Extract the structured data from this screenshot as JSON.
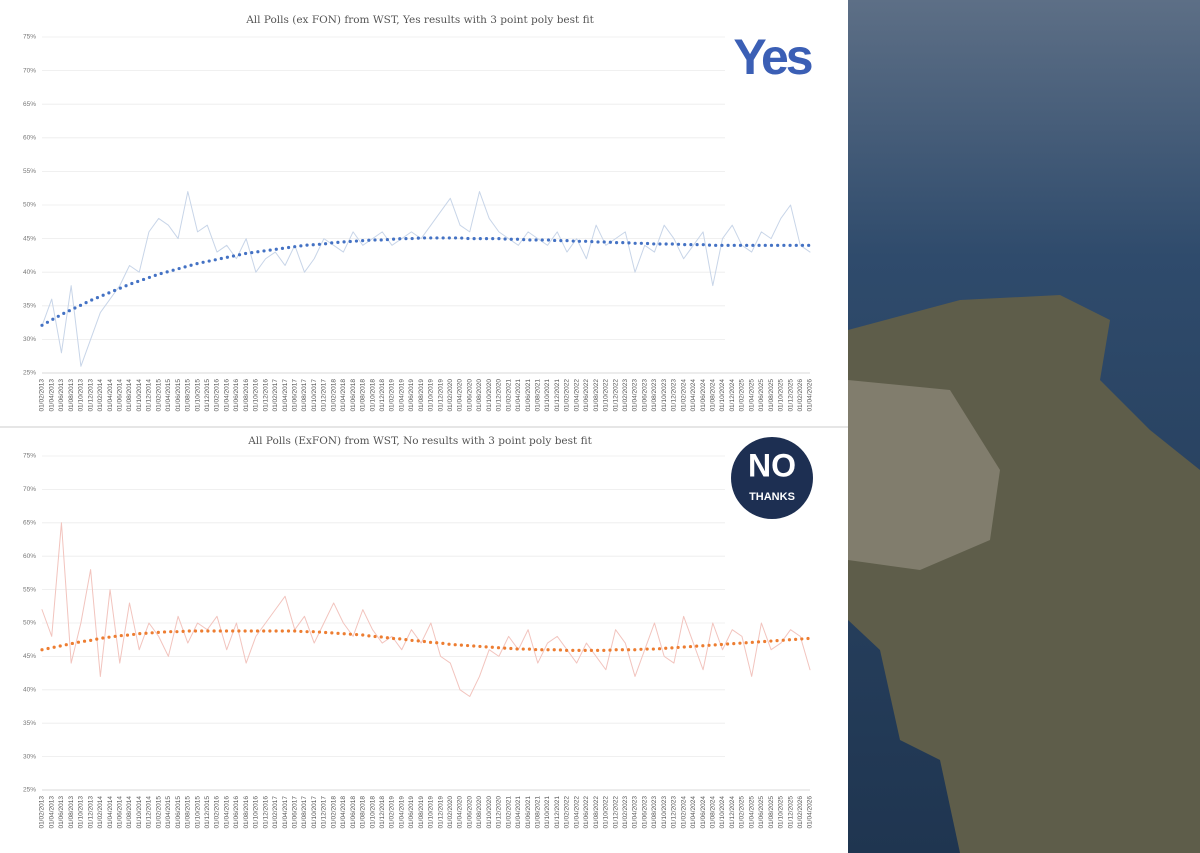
{
  "chart_data": [
    {
      "type": "line",
      "title": "All Polls (ex FON) from WST, Yes results with 3 point poly best fit",
      "logo": "Yes",
      "categories": [
        "01/02/2013",
        "01/04/2013",
        "01/06/2013",
        "01/08/2013",
        "01/10/2013",
        "01/12/2013",
        "01/02/2014",
        "01/04/2014",
        "01/06/2014",
        "01/08/2014",
        "01/10/2014",
        "01/12/2014",
        "01/02/2015",
        "01/04/2015",
        "01/06/2015",
        "01/08/2015",
        "01/10/2015",
        "01/12/2015",
        "01/02/2016",
        "01/04/2016",
        "01/06/2016",
        "01/08/2016",
        "01/10/2016",
        "01/12/2016",
        "01/02/2017",
        "01/04/2017",
        "01/06/2017",
        "01/08/2017",
        "01/10/2017",
        "01/12/2017",
        "01/02/2018",
        "01/04/2018",
        "01/06/2018",
        "01/08/2018",
        "01/10/2018",
        "01/12/2018",
        "01/02/2019",
        "01/04/2019",
        "01/06/2019",
        "01/08/2019",
        "01/10/2019",
        "01/12/2019",
        "01/02/2020",
        "01/04/2020",
        "01/06/2020",
        "01/08/2020",
        "01/10/2020",
        "01/12/2020",
        "01/02/2021",
        "01/04/2021",
        "01/06/2021",
        "01/08/2021",
        "01/10/2021",
        "01/12/2021",
        "01/02/2022",
        "01/04/2022",
        "01/06/2022",
        "01/08/2022",
        "01/10/2022",
        "01/12/2022",
        "01/02/2023",
        "01/04/2023",
        "01/06/2023",
        "01/08/2023",
        "01/10/2023",
        "01/12/2023",
        "01/02/2024",
        "01/04/2024",
        "01/06/2024",
        "01/08/2024",
        "01/10/2024",
        "01/12/2024",
        "01/02/2025",
        "01/04/2025",
        "01/06/2025",
        "01/08/2025",
        "01/10/2025",
        "01/12/2025",
        "01/02/2026",
        "01/04/2026"
      ],
      "series": [
        {
          "color": "#c8d5e8",
          "line_style": "solid",
          "values": [
            32,
            36,
            28,
            38,
            26,
            30,
            34,
            36,
            38,
            41,
            40,
            46,
            48,
            47,
            45,
            52,
            46,
            47,
            43,
            44,
            42,
            45,
            40,
            42,
            43,
            41,
            44,
            40,
            42,
            45,
            44,
            43,
            46,
            44,
            45,
            46,
            44,
            45,
            46,
            45,
            47,
            49,
            51,
            47,
            46,
            52,
            48,
            46,
            45,
            44,
            46,
            45,
            44,
            46,
            43,
            45,
            42,
            47,
            44,
            45,
            46,
            40,
            44,
            43,
            47,
            45,
            42,
            44,
            46,
            38,
            45,
            47,
            44,
            43,
            46,
            45,
            48,
            50,
            44,
            43
          ]
        },
        {
          "color": "#4472c4",
          "line_style": "dotted",
          "values": [
            32.1,
            32.9,
            33.7,
            34.4,
            35.1,
            35.8,
            36.4,
            37.0,
            37.6,
            38.2,
            38.7,
            39.2,
            39.7,
            40.1,
            40.5,
            40.9,
            41.3,
            41.6,
            41.9,
            42.2,
            42.5,
            42.8,
            43.0,
            43.2,
            43.4,
            43.6,
            43.8,
            44.0,
            44.1,
            44.2,
            44.4,
            44.5,
            44.6,
            44.7,
            44.8,
            44.8,
            44.9,
            45.0,
            45.0,
            45.1,
            45.1,
            45.1,
            45.1,
            45.1,
            45.0,
            45.0,
            45.0,
            45.0,
            44.9,
            44.9,
            44.8,
            44.8,
            44.8,
            44.7,
            44.7,
            44.6,
            44.6,
            44.5,
            44.5,
            44.4,
            44.4,
            44.3,
            44.3,
            44.2,
            44.2,
            44.2,
            44.1,
            44.1,
            44.1,
            44.0,
            44.0,
            44.0,
            44.0,
            44.0,
            44.0,
            44.0,
            44.0,
            44.0,
            44.0,
            44.0
          ]
        }
      ],
      "ylim": [
        25,
        75
      ],
      "yticks": [
        {
          "value": 25,
          "label": "25%"
        },
        {
          "value": 30,
          "label": "30%"
        },
        {
          "value": 35,
          "label": "35%"
        },
        {
          "value": 40,
          "label": "40%"
        },
        {
          "value": 45,
          "label": "45%"
        },
        {
          "value": 50,
          "label": "50%"
        },
        {
          "value": 55,
          "label": "55%"
        },
        {
          "value": 60,
          "label": "60%"
        },
        {
          "value": 65,
          "label": "65%"
        },
        {
          "value": 70,
          "label": "70%"
        },
        {
          "value": 75,
          "label": "75%"
        }
      ],
      "grid": true
    },
    {
      "type": "line",
      "title": "All Polls (ExFON) from WST, No results with 3 point poly best fit",
      "logo": "NO",
      "logo_sub": "THANKS",
      "categories": [
        "01/02/2013",
        "01/04/2013",
        "01/06/2013",
        "01/08/2013",
        "01/10/2013",
        "01/12/2013",
        "01/02/2014",
        "01/04/2014",
        "01/06/2014",
        "01/08/2014",
        "01/10/2014",
        "01/12/2014",
        "01/02/2015",
        "01/04/2015",
        "01/06/2015",
        "01/08/2015",
        "01/10/2015",
        "01/12/2015",
        "01/02/2016",
        "01/04/2016",
        "01/06/2016",
        "01/08/2016",
        "01/10/2016",
        "01/12/2016",
        "01/02/2017",
        "01/04/2017",
        "01/06/2017",
        "01/08/2017",
        "01/10/2017",
        "01/12/2017",
        "01/02/2018",
        "01/04/2018",
        "01/06/2018",
        "01/08/2018",
        "01/10/2018",
        "01/12/2018",
        "01/02/2019",
        "01/04/2019",
        "01/06/2019",
        "01/08/2019",
        "01/10/2019",
        "01/12/2019",
        "01/02/2020",
        "01/04/2020",
        "01/06/2020",
        "01/08/2020",
        "01/10/2020",
        "01/12/2020",
        "01/02/2021",
        "01/04/2021",
        "01/06/2021",
        "01/08/2021",
        "01/10/2021",
        "01/12/2021",
        "01/02/2022",
        "01/04/2022",
        "01/06/2022",
        "01/08/2022",
        "01/10/2022",
        "01/12/2022",
        "01/02/2023",
        "01/04/2023",
        "01/06/2023",
        "01/08/2023",
        "01/10/2023",
        "01/12/2023",
        "01/02/2024",
        "01/04/2024",
        "01/06/2024",
        "01/08/2024",
        "01/10/2024",
        "01/12/2024",
        "01/02/2025",
        "01/04/2025",
        "01/06/2025",
        "01/08/2025",
        "01/10/2025",
        "01/12/2025",
        "01/02/2026",
        "01/04/2026"
      ],
      "series": [
        {
          "color": "#f2c4be",
          "line_style": "solid",
          "values": [
            52,
            48,
            65,
            44,
            50,
            58,
            42,
            55,
            44,
            53,
            46,
            50,
            48,
            45,
            51,
            47,
            50,
            49,
            51,
            46,
            50,
            44,
            48,
            50,
            52,
            54,
            49,
            51,
            47,
            50,
            53,
            50,
            48,
            52,
            49,
            47,
            48,
            46,
            49,
            47,
            50,
            45,
            44,
            40,
            39,
            42,
            46,
            45,
            48,
            46,
            49,
            44,
            47,
            48,
            46,
            44,
            47,
            45,
            43,
            49,
            47,
            42,
            46,
            50,
            45,
            44,
            51,
            47,
            43,
            50,
            46,
            49,
            48,
            42,
            50,
            46,
            47,
            49,
            48,
            43
          ]
        },
        {
          "color": "#ed7d31",
          "line_style": "dotted",
          "values": [
            46.0,
            46.3,
            46.6,
            46.9,
            47.2,
            47.4,
            47.7,
            47.9,
            48.1,
            48.2,
            48.4,
            48.5,
            48.6,
            48.7,
            48.7,
            48.8,
            48.8,
            48.8,
            48.8,
            48.8,
            48.8,
            48.8,
            48.8,
            48.8,
            48.8,
            48.8,
            48.8,
            48.7,
            48.7,
            48.6,
            48.5,
            48.4,
            48.3,
            48.2,
            48.0,
            47.9,
            47.7,
            47.6,
            47.4,
            47.3,
            47.1,
            47.0,
            46.8,
            46.7,
            46.6,
            46.5,
            46.4,
            46.3,
            46.2,
            46.1,
            46.1,
            46.0,
            46.0,
            46.0,
            45.9,
            45.9,
            45.9,
            45.9,
            45.9,
            46.0,
            46.0,
            46.0,
            46.1,
            46.1,
            46.2,
            46.3,
            46.4,
            46.5,
            46.6,
            46.7,
            46.8,
            46.9,
            47.0,
            47.1,
            47.2,
            47.3,
            47.4,
            47.5,
            47.6,
            47.7
          ]
        }
      ],
      "ylim": [
        25,
        75
      ],
      "yticks": [
        {
          "value": 25,
          "label": "25%"
        },
        {
          "value": 30,
          "label": "30%"
        },
        {
          "value": 35,
          "label": "35%"
        },
        {
          "value": 40,
          "label": "40%"
        },
        {
          "value": 45,
          "label": "45%"
        },
        {
          "value": 50,
          "label": "50%"
        },
        {
          "value": 55,
          "label": "55%"
        },
        {
          "value": 60,
          "label": "60%"
        },
        {
          "value": 65,
          "label": "65%"
        },
        {
          "value": 70,
          "label": "70%"
        },
        {
          "value": 75,
          "label": "75%"
        }
      ],
      "grid": true
    }
  ]
}
